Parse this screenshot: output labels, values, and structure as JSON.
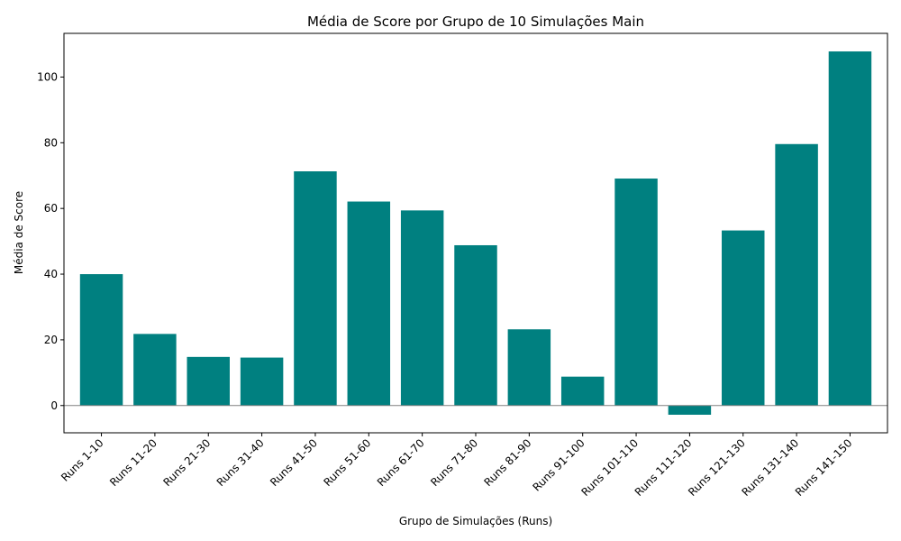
{
  "chart_data": {
    "type": "bar",
    "title": "Média de Score por Grupo de 10 Simulações Main",
    "xlabel": "Grupo de Simulações (Runs)",
    "ylabel": "Média de Score",
    "categories": [
      "Runs 1-10",
      "Runs 11-20",
      "Runs 21-30",
      "Runs 31-40",
      "Runs 41-50",
      "Runs 51-60",
      "Runs 61-70",
      "Runs 71-80",
      "Runs 81-90",
      "Runs 91-100",
      "Runs 101-110",
      "Runs 111-120",
      "Runs 121-130",
      "Runs 131-140",
      "Runs 141-150"
    ],
    "values": [
      40.0,
      21.8,
      14.8,
      14.6,
      71.3,
      62.1,
      59.4,
      48.8,
      23.2,
      8.8,
      69.1,
      -2.8,
      53.3,
      79.6,
      107.8
    ],
    "ylim": [
      -8.3,
      113.3
    ],
    "yticks": [
      0,
      20,
      40,
      60,
      80,
      100
    ],
    "bar_color": "#008080",
    "zero_line_color": "#808080",
    "grid": false,
    "legend": "none"
  }
}
